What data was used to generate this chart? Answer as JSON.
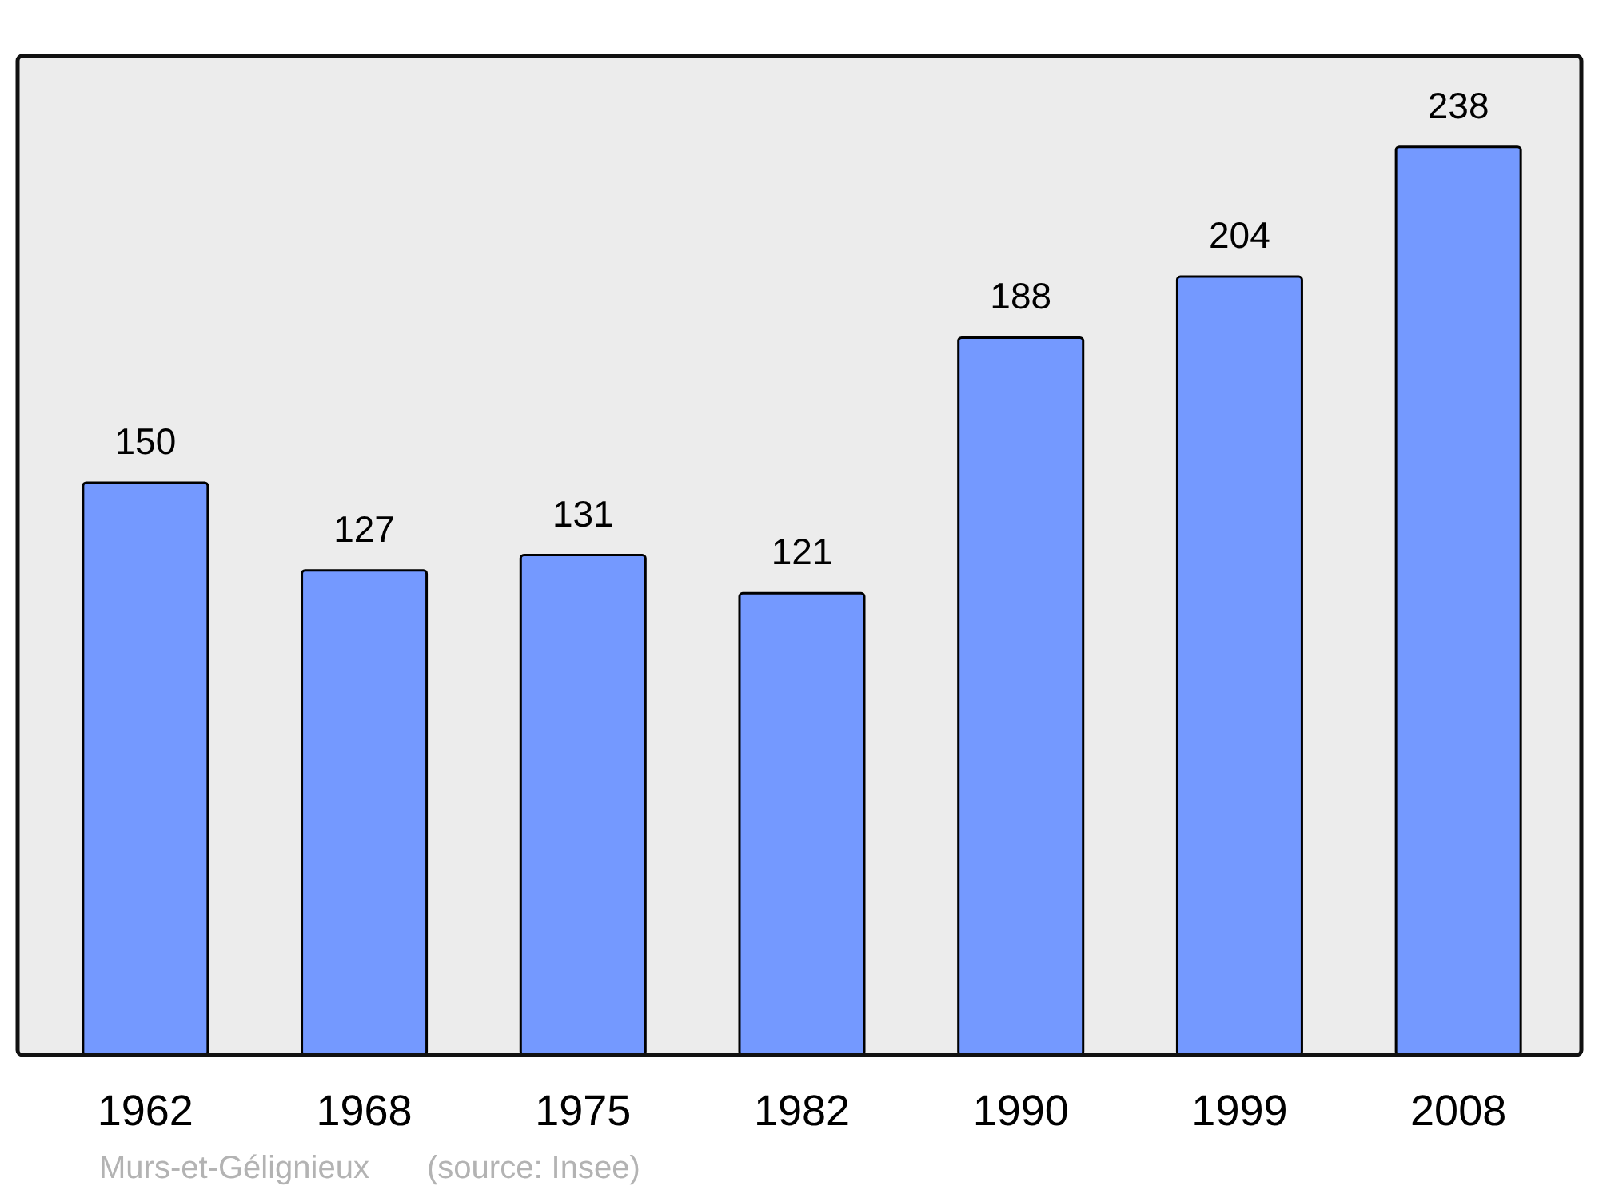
{
  "chart_data": {
    "type": "bar",
    "categories": [
      "1962",
      "1968",
      "1975",
      "1982",
      "1990",
      "1999",
      "2008"
    ],
    "values": [
      150,
      127,
      131,
      121,
      188,
      204,
      238
    ],
    "color": "#7499ff",
    "data_labels": true,
    "tick_labels": "x",
    "annotations": [
      "Murs-et-Gélignieux",
      "(source: Insee)"
    ]
  }
}
